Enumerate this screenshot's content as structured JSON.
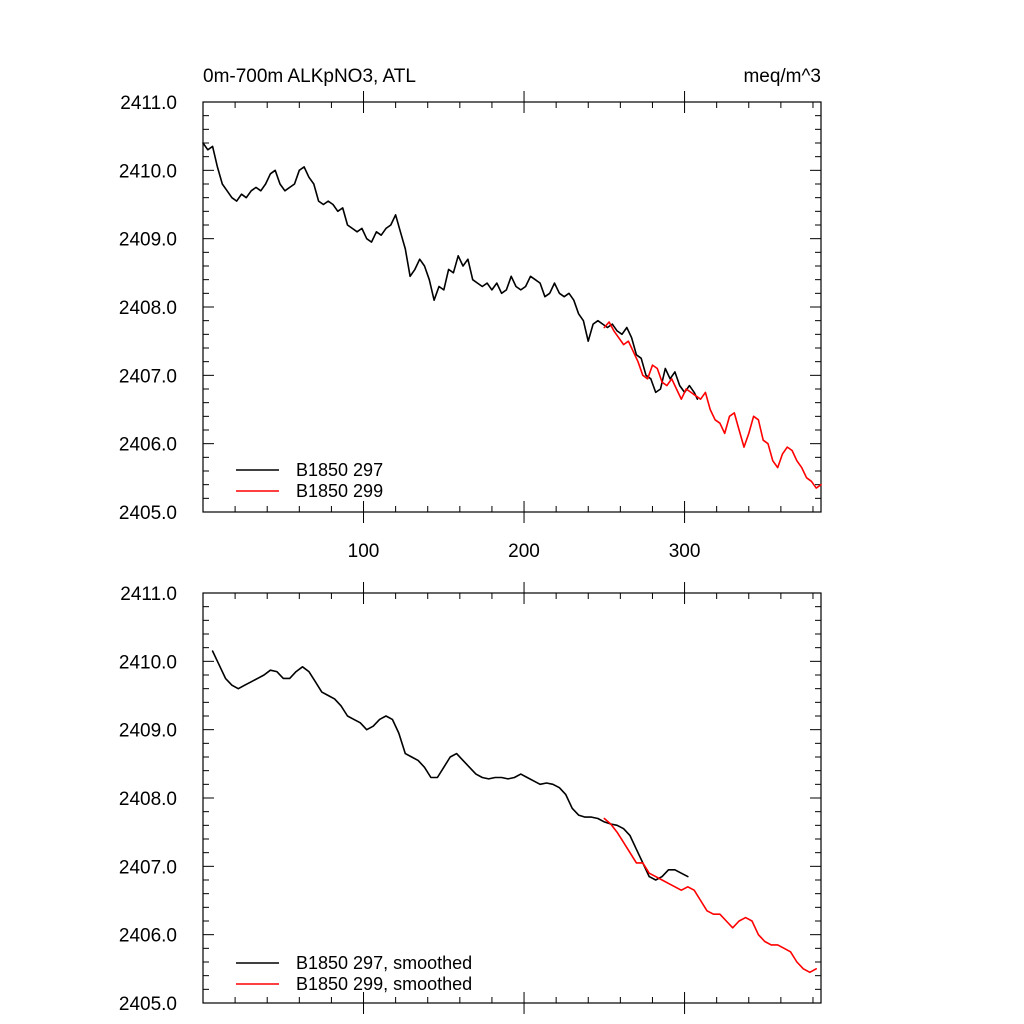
{
  "chart_data": [
    {
      "type": "line",
      "title_left": "0m-700m ALKpNO3, ATL",
      "title_right": "meq/m^3",
      "xlabel": "",
      "ylabel": "",
      "xlim": [
        0,
        385
      ],
      "ylim": [
        2405.0,
        2411.0
      ],
      "xticks": [
        100,
        200,
        300
      ],
      "yticks": [
        "2405.0",
        "2406.0",
        "2407.0",
        "2408.0",
        "2409.0",
        "2410.0",
        "2411.0"
      ],
      "grid": false,
      "legend_position": "bottom-left",
      "series": [
        {
          "name": "B1850 297",
          "color": "#000000",
          "x": [
            0,
            3,
            6,
            9,
            12,
            15,
            18,
            21,
            24,
            27,
            30,
            33,
            36,
            39,
            42,
            45,
            48,
            51,
            54,
            57,
            60,
            63,
            66,
            69,
            72,
            75,
            78,
            81,
            84,
            87,
            90,
            93,
            96,
            99,
            102,
            105,
            108,
            111,
            114,
            117,
            120,
            123,
            126,
            129,
            132,
            135,
            138,
            141,
            144,
            147,
            150,
            153,
            156,
            159,
            162,
            165,
            168,
            171,
            174,
            177,
            180,
            183,
            186,
            189,
            192,
            195,
            198,
            201,
            204,
            207,
            210,
            213,
            216,
            219,
            222,
            225,
            228,
            231,
            234,
            237,
            240,
            243,
            246,
            249,
            252,
            255,
            258,
            261,
            264,
            267,
            270,
            273,
            276,
            279,
            282,
            285,
            288,
            291,
            294,
            297,
            300,
            303,
            306,
            308
          ],
          "values": [
            2410.4,
            2410.3,
            2410.35,
            2410.05,
            2409.8,
            2409.7,
            2409.6,
            2409.55,
            2409.65,
            2409.6,
            2409.7,
            2409.75,
            2409.7,
            2409.8,
            2409.95,
            2410.0,
            2409.8,
            2409.7,
            2409.75,
            2409.8,
            2410.0,
            2410.05,
            2409.9,
            2409.8,
            2409.55,
            2409.5,
            2409.55,
            2409.5,
            2409.4,
            2409.45,
            2409.2,
            2409.15,
            2409.1,
            2409.15,
            2409.0,
            2408.95,
            2409.1,
            2409.05,
            2409.15,
            2409.2,
            2409.35,
            2409.1,
            2408.85,
            2408.45,
            2408.55,
            2408.7,
            2408.6,
            2408.4,
            2408.1,
            2408.3,
            2408.25,
            2408.55,
            2408.5,
            2408.75,
            2408.6,
            2408.7,
            2408.4,
            2408.35,
            2408.3,
            2408.35,
            2408.25,
            2408.35,
            2408.2,
            2408.25,
            2408.45,
            2408.3,
            2408.25,
            2408.3,
            2408.45,
            2408.4,
            2408.35,
            2408.15,
            2408.2,
            2408.35,
            2408.2,
            2408.15,
            2408.2,
            2408.1,
            2407.9,
            2407.8,
            2407.5,
            2407.75,
            2407.8,
            2407.75,
            2407.7,
            2407.75,
            2407.65,
            2407.6,
            2407.7,
            2407.55,
            2407.3,
            2407.25,
            2407.0,
            2406.95,
            2406.75,
            2406.8,
            2407.1,
            2406.95,
            2407.05,
            2406.85,
            2406.75,
            2406.85,
            2406.75,
            2406.65
          ]
        },
        {
          "name": "B1850 299",
          "color": "#ff0000",
          "x": [
            250,
            253,
            256,
            259,
            262,
            265,
            268,
            271,
            274,
            277,
            280,
            283,
            286,
            289,
            292,
            295,
            298,
            301,
            304,
            307,
            310,
            313,
            316,
            319,
            322,
            325,
            328,
            331,
            334,
            337,
            340,
            343,
            346,
            349,
            352,
            355,
            358,
            361,
            364,
            367,
            370,
            373,
            376,
            379,
            382,
            385
          ],
          "values": [
            2407.7,
            2407.78,
            2407.65,
            2407.55,
            2407.45,
            2407.5,
            2407.35,
            2407.2,
            2407.0,
            2406.95,
            2407.15,
            2407.1,
            2406.9,
            2406.85,
            2406.95,
            2406.8,
            2406.65,
            2406.8,
            2406.75,
            2406.7,
            2406.65,
            2406.75,
            2406.5,
            2406.35,
            2406.3,
            2406.15,
            2406.4,
            2406.45,
            2406.2,
            2405.95,
            2406.15,
            2406.4,
            2406.35,
            2406.05,
            2406.0,
            2405.75,
            2405.65,
            2405.85,
            2405.95,
            2405.9,
            2405.75,
            2405.65,
            2405.5,
            2405.45,
            2405.35,
            2405.4
          ]
        }
      ]
    },
    {
      "type": "line",
      "xlabel": "",
      "ylabel": "",
      "xlim": [
        0,
        385
      ],
      "ylim": [
        2405.0,
        2411.0
      ],
      "xticks": [
        100,
        200,
        300
      ],
      "yticks": [
        "2405.0",
        "2406.0",
        "2407.0",
        "2408.0",
        "2409.0",
        "2410.0",
        "2411.0"
      ],
      "grid": false,
      "legend_position": "bottom-left",
      "series": [
        {
          "name": "B1850 297, smoothed",
          "color": "#000000",
          "x": [
            6,
            10,
            14,
            18,
            22,
            26,
            30,
            34,
            38,
            42,
            46,
            50,
            54,
            58,
            62,
            66,
            70,
            74,
            78,
            82,
            86,
            90,
            94,
            98,
            102,
            106,
            110,
            114,
            118,
            122,
            126,
            130,
            134,
            138,
            142,
            146,
            150,
            154,
            158,
            162,
            166,
            170,
            174,
            178,
            182,
            186,
            190,
            194,
            198,
            202,
            206,
            210,
            214,
            218,
            222,
            226,
            230,
            234,
            238,
            242,
            246,
            250,
            254,
            258,
            262,
            266,
            270,
            274,
            278,
            282,
            286,
            290,
            294,
            298,
            302
          ],
          "values": [
            2410.15,
            2409.95,
            2409.75,
            2409.65,
            2409.6,
            2409.65,
            2409.7,
            2409.75,
            2409.8,
            2409.87,
            2409.85,
            2409.75,
            2409.75,
            2409.85,
            2409.92,
            2409.85,
            2409.7,
            2409.55,
            2409.5,
            2409.45,
            2409.35,
            2409.2,
            2409.15,
            2409.1,
            2409.0,
            2409.05,
            2409.15,
            2409.2,
            2409.15,
            2408.95,
            2408.65,
            2408.6,
            2408.55,
            2408.45,
            2408.3,
            2408.3,
            2408.45,
            2408.6,
            2408.65,
            2408.55,
            2408.45,
            2408.35,
            2408.3,
            2408.28,
            2408.3,
            2408.3,
            2408.28,
            2408.3,
            2408.35,
            2408.3,
            2408.25,
            2408.2,
            2408.22,
            2408.2,
            2408.15,
            2408.05,
            2407.85,
            2407.75,
            2407.72,
            2407.72,
            2407.7,
            2407.65,
            2407.62,
            2407.6,
            2407.55,
            2407.45,
            2407.25,
            2407.05,
            2406.85,
            2406.8,
            2406.85,
            2406.95,
            2406.95,
            2406.9,
            2406.85
          ]
        },
        {
          "name": "B1850 299, smoothed",
          "color": "#ff0000",
          "x": [
            250,
            254,
            258,
            262,
            266,
            270,
            274,
            278,
            282,
            286,
            290,
            294,
            298,
            302,
            306,
            310,
            314,
            318,
            322,
            326,
            330,
            334,
            338,
            342,
            346,
            350,
            354,
            358,
            362,
            366,
            370,
            374,
            378,
            382
          ],
          "values": [
            2407.7,
            2407.62,
            2407.5,
            2407.35,
            2407.2,
            2407.05,
            2407.05,
            2406.9,
            2406.85,
            2406.8,
            2406.75,
            2406.7,
            2406.65,
            2406.7,
            2406.65,
            2406.5,
            2406.35,
            2406.3,
            2406.3,
            2406.2,
            2406.1,
            2406.2,
            2406.25,
            2406.2,
            2406.0,
            2405.9,
            2405.85,
            2405.85,
            2405.8,
            2405.75,
            2405.6,
            2405.5,
            2405.45,
            2405.5
          ]
        }
      ]
    }
  ]
}
